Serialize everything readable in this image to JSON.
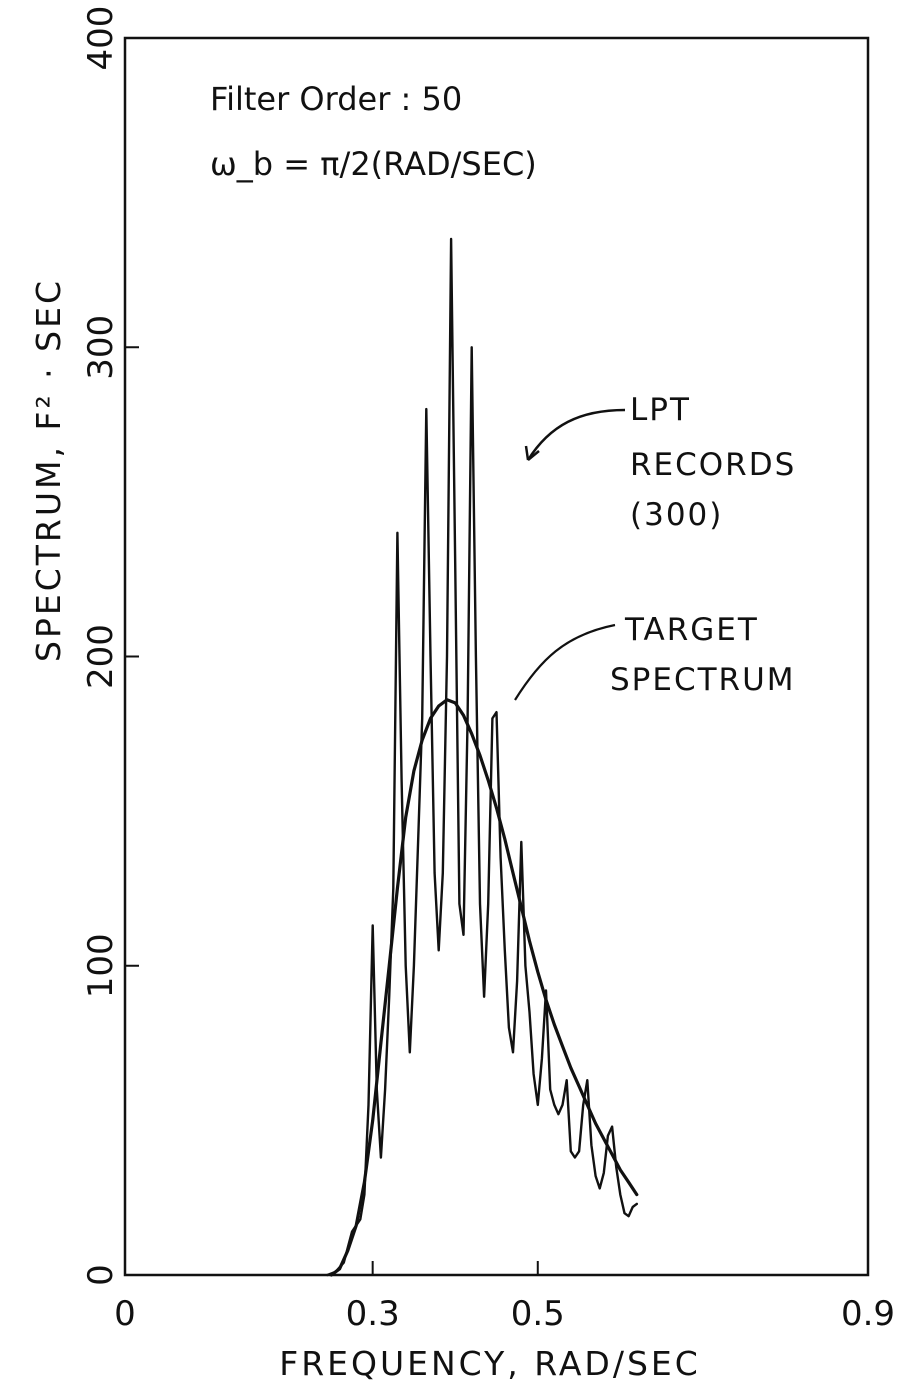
{
  "chart_data": {
    "type": "line",
    "title": "",
    "xlabel": "FREQUENCY, RAD/SEC",
    "ylabel": "SPECTRUM, F² ⋅ SEC",
    "xlim": [
      0,
      0.9
    ],
    "ylim": [
      0,
      400
    ],
    "x_ticks": [
      "0",
      "0.3",
      "0.5",
      "0.9"
    ],
    "y_ticks": [
      "0",
      "100",
      "200",
      "300",
      "400"
    ],
    "grid": false,
    "parameters": {
      "filter_order": "Filter Order : 50",
      "omega_b": "ω_b = π/2(RAD/SEC)"
    },
    "annotations": [
      {
        "lines": [
          "LPT",
          "RECORDS",
          "(300)"
        ],
        "points_to": "LPT records curve"
      },
      {
        "lines": [
          "TARGET",
          "SPECTRUM"
        ],
        "points_to": "target spectrum curve"
      }
    ],
    "series": [
      {
        "name": "TARGET SPECTRUM",
        "style": "smooth",
        "x": [
          0.25,
          0.26,
          0.27,
          0.28,
          0.29,
          0.3,
          0.31,
          0.32,
          0.33,
          0.34,
          0.35,
          0.36,
          0.37,
          0.38,
          0.39,
          0.4,
          0.41,
          0.42,
          0.43,
          0.44,
          0.45,
          0.46,
          0.47,
          0.48,
          0.49,
          0.5,
          0.51,
          0.52,
          0.53,
          0.54,
          0.55,
          0.56,
          0.57,
          0.58,
          0.59,
          0.6,
          0.61,
          0.62
        ],
        "y": [
          0,
          2,
          8,
          16,
          30,
          50,
          75,
          100,
          125,
          148,
          163,
          173,
          180,
          184,
          186,
          185,
          181,
          175,
          168,
          160,
          151,
          141,
          130,
          119,
          108,
          98,
          89,
          81,
          74,
          67,
          61,
          55,
          49,
          44,
          39,
          34,
          30,
          26
        ]
      },
      {
        "name": "LPT RECORDS (300)",
        "style": "jagged",
        "x": [
          0.245,
          0.255,
          0.265,
          0.275,
          0.285,
          0.29,
          0.295,
          0.3,
          0.305,
          0.31,
          0.315,
          0.32,
          0.325,
          0.33,
          0.335,
          0.34,
          0.345,
          0.35,
          0.355,
          0.36,
          0.365,
          0.37,
          0.375,
          0.38,
          0.385,
          0.39,
          0.395,
          0.4,
          0.405,
          0.41,
          0.415,
          0.42,
          0.425,
          0.43,
          0.435,
          0.44,
          0.445,
          0.45,
          0.455,
          0.46,
          0.465,
          0.47,
          0.475,
          0.48,
          0.485,
          0.49,
          0.495,
          0.5,
          0.505,
          0.51,
          0.515,
          0.52,
          0.525,
          0.53,
          0.535,
          0.54,
          0.545,
          0.55,
          0.555,
          0.56,
          0.565,
          0.57,
          0.575,
          0.58,
          0.585,
          0.59,
          0.595,
          0.6,
          0.605,
          0.61,
          0.615,
          0.62
        ],
        "y": [
          0,
          1,
          4,
          14,
          18,
          26,
          55,
          113,
          60,
          38,
          60,
          90,
          125,
          240,
          160,
          100,
          72,
          100,
          140,
          180,
          280,
          200,
          130,
          105,
          130,
          200,
          335,
          230,
          120,
          110,
          180,
          300,
          200,
          120,
          90,
          120,
          180,
          182,
          135,
          105,
          80,
          72,
          95,
          140,
          100,
          85,
          65,
          55,
          70,
          92,
          60,
          55,
          52,
          55,
          63,
          40,
          38,
          40,
          55,
          63,
          42,
          32,
          28,
          33,
          45,
          48,
          35,
          26,
          20,
          19,
          22,
          23
        ]
      }
    ]
  }
}
